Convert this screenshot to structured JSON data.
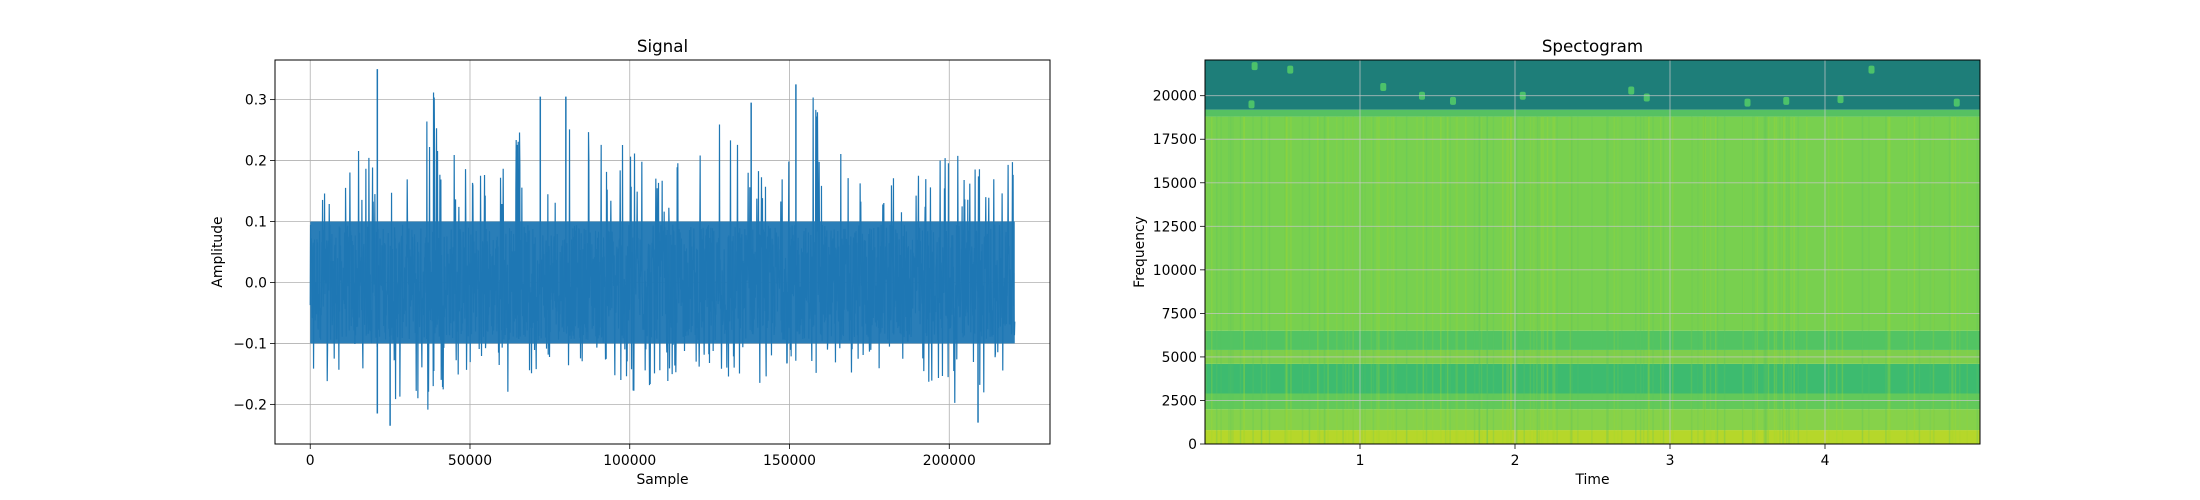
{
  "charts": {
    "signal": {
      "title": "Signal",
      "xlabel": "Sample",
      "ylabel": "Amplitude"
    },
    "spectrogram": {
      "title": "Spectogram",
      "xlabel": "Time",
      "ylabel": "Frequency"
    }
  },
  "chart_data": [
    {
      "type": "line",
      "title": "Signal",
      "xlabel": "Sample",
      "ylabel": "Amplitude",
      "xlim": [
        -11025,
        231525
      ],
      "ylim": [
        -0.265,
        0.365
      ],
      "xticks": [
        0,
        50000,
        100000,
        150000,
        200000
      ],
      "xtick_labels": [
        "0",
        "50000",
        "100000",
        "150000",
        "200000"
      ],
      "yticks": [
        -0.2,
        -0.1,
        0.0,
        0.1,
        0.2,
        0.3
      ],
      "ytick_labels": [
        "−0.2",
        "−0.1",
        "0.0",
        "0.1",
        "0.2",
        "0.3"
      ],
      "grid": true,
      "color": "#1f77b4",
      "series": [
        {
          "x_range": [
            0,
            220500
          ],
          "envelope_upper": [
            0.14,
            0.21,
            0.22,
            0.2,
            0.35,
            0.22,
            0.18,
            0.26,
            0.2,
            0.3,
            0.22,
            0.25,
            0.21,
            0.22,
            0.28,
            0.2,
            0.22,
            0.33,
            0.22,
            0.18,
            0.2,
            0.21,
            0.22,
            0.22,
            0.23
          ],
          "envelope_lower": [
            -0.19,
            -0.15,
            -0.14,
            -0.22,
            -0.23,
            -0.16,
            -0.15,
            -0.2,
            -0.16,
            -0.14,
            -0.16,
            -0.19,
            -0.17,
            -0.14,
            -0.16,
            -0.18,
            -0.15,
            -0.15,
            -0.16,
            -0.15,
            -0.13,
            -0.16,
            -0.23,
            -0.18,
            -0.2
          ],
          "peaks": [
            {
              "x": 21000,
              "y": 0.35
            },
            {
              "x": 152000,
              "y": 0.325
            },
            {
              "x": 72000,
              "y": 0.305
            },
            {
              "x": 80000,
              "y": 0.305
            },
            {
              "x": 138000,
              "y": 0.295
            },
            {
              "x": 25000,
              "y": -0.235
            },
            {
              "x": 21000,
              "y": -0.215
            },
            {
              "x": 209000,
              "y": -0.23
            }
          ]
        }
      ]
    },
    {
      "type": "heatmap",
      "title": "Spectogram",
      "xlabel": "Time",
      "ylabel": "Frequency",
      "xlim": [
        0,
        5.0
      ],
      "ylim": [
        0,
        22050
      ],
      "xticks": [
        1,
        2,
        3,
        4
      ],
      "xtick_labels": [
        "1",
        "2",
        "3",
        "4"
      ],
      "yticks": [
        0,
        2500,
        5000,
        7500,
        10000,
        12500,
        15000,
        17500,
        20000
      ],
      "ytick_labels": [
        "0",
        "2500",
        "5000",
        "7500",
        "10000",
        "12500",
        "15000",
        "17500",
        "20000"
      ],
      "grid": true,
      "colormap": "viridis",
      "bands": [
        {
          "from": 0,
          "to": 800,
          "color": "#b6d72a"
        },
        {
          "from": 800,
          "to": 2000,
          "color": "#86d24a"
        },
        {
          "from": 2000,
          "to": 2900,
          "color": "#62c95a"
        },
        {
          "from": 2900,
          "to": 4600,
          "color": "#3dbb6f"
        },
        {
          "from": 4600,
          "to": 5400,
          "color": "#7ece4d"
        },
        {
          "from": 5400,
          "to": 6500,
          "color": "#52c463"
        },
        {
          "from": 6500,
          "to": 18800,
          "color": "#78d04f"
        },
        {
          "from": 18800,
          "to": 19200,
          "color": "#56c162"
        },
        {
          "from": 19200,
          "to": 22050,
          "color": "#1e7e79"
        }
      ],
      "high_freq_blips": [
        {
          "t": 0.3,
          "f": 19500
        },
        {
          "t": 0.32,
          "f": 21700
        },
        {
          "t": 0.55,
          "f": 21500
        },
        {
          "t": 1.15,
          "f": 20500
        },
        {
          "t": 1.4,
          "f": 20000
        },
        {
          "t": 1.6,
          "f": 19700
        },
        {
          "t": 2.05,
          "f": 20000
        },
        {
          "t": 2.75,
          "f": 20300
        },
        {
          "t": 2.85,
          "f": 19900
        },
        {
          "t": 3.5,
          "f": 19600
        },
        {
          "t": 3.75,
          "f": 19700
        },
        {
          "t": 4.1,
          "f": 19800
        },
        {
          "t": 4.3,
          "f": 21500
        },
        {
          "t": 4.85,
          "f": 19600
        }
      ]
    }
  ]
}
